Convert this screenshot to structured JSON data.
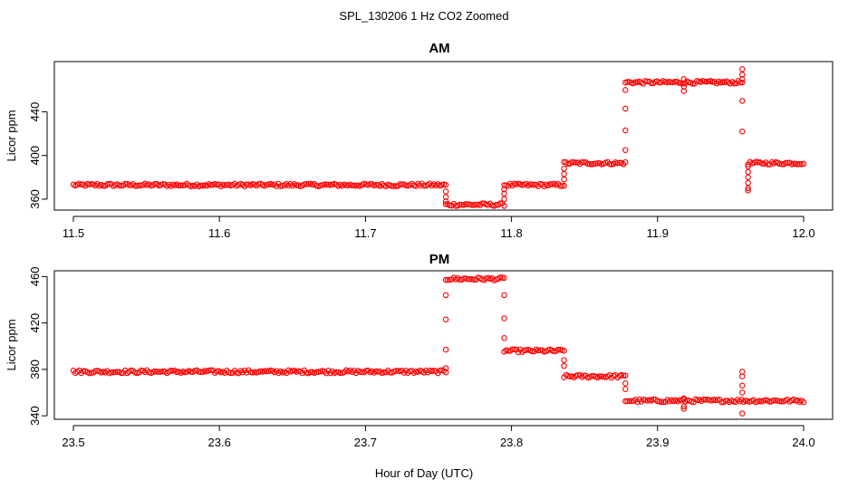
{
  "figure": {
    "title": "SPL_130206  1 Hz CO2 Zoomed",
    "xlabel": "Hour of Day (UTC)"
  },
  "colors": {
    "points": "#ff0000",
    "axis": "#000000",
    "background": "#ffffff"
  },
  "chart_data": [
    {
      "type": "scatter",
      "title": "AM",
      "ylabel": "Licor ppm",
      "xlim": [
        11.5,
        12.0
      ],
      "ylim": [
        350,
        486
      ],
      "x_ticks": [
        "11.5",
        "11.6",
        "11.7",
        "11.8",
        "11.9",
        "12.0"
      ],
      "y_ticks": [
        "360",
        "400",
        "440"
      ],
      "grid": false,
      "marker": "open circle",
      "segments": [
        {
          "x_start": 11.5,
          "x_end": 11.755,
          "y": 373
        },
        {
          "x_start": 11.755,
          "x_end": 11.795,
          "y": 355
        },
        {
          "x_start": 11.795,
          "x_end": 11.836,
          "y": 373
        },
        {
          "x_start": 11.836,
          "x_end": 11.878,
          "y": 393
        },
        {
          "x_start": 11.878,
          "x_end": 11.958,
          "y": 467
        },
        {
          "x_start": 11.962,
          "x_end": 12.0,
          "y": 393
        }
      ],
      "transitions": [
        {
          "x": 11.755,
          "y": [
            367,
            362,
            358
          ]
        },
        {
          "x": 11.795,
          "y": [
            360,
            365,
            369
          ]
        },
        {
          "x": 11.836,
          "y": [
            378,
            383,
            388
          ]
        },
        {
          "x": 11.878,
          "y": [
            405,
            423,
            443,
            460
          ]
        },
        {
          "x": 11.918,
          "y": [
            470,
            463,
            459
          ]
        },
        {
          "x": 11.958,
          "y": [
            479,
            474,
            470,
            450,
            422
          ]
        },
        {
          "x": 11.962,
          "y": [
            370,
            368,
            375,
            380,
            385,
            390
          ]
        }
      ]
    },
    {
      "type": "scatter",
      "title": "PM",
      "ylabel": "Licor ppm",
      "xlim": [
        23.5,
        24.0
      ],
      "ylim": [
        337,
        465
      ],
      "x_ticks": [
        "23.5",
        "23.6",
        "23.7",
        "23.8",
        "23.9",
        "24.0"
      ],
      "y_ticks": [
        "340",
        "380",
        "420",
        "460"
      ],
      "grid": false,
      "marker": "open circle",
      "segments": [
        {
          "x_start": 23.5,
          "x_end": 23.755,
          "y": 378
        },
        {
          "x_start": 23.755,
          "x_end": 23.795,
          "y": 458
        },
        {
          "x_start": 23.795,
          "x_end": 23.836,
          "y": 396
        },
        {
          "x_start": 23.836,
          "x_end": 23.878,
          "y": 374
        },
        {
          "x_start": 23.878,
          "x_end": 24.0,
          "y": 353
        }
      ],
      "transitions": [
        {
          "x": 23.755,
          "y": [
            381,
            397,
            423,
            444
          ]
        },
        {
          "x": 23.795,
          "y": [
            444,
            424,
            407
          ]
        },
        {
          "x": 23.836,
          "y": [
            388,
            383
          ]
        },
        {
          "x": 23.878,
          "y": [
            368,
            363
          ]
        },
        {
          "x": 23.918,
          "y": [
            355,
            348,
            346
          ]
        },
        {
          "x": 23.958,
          "y": [
            378,
            374,
            366,
            360,
            342
          ]
        }
      ]
    }
  ]
}
